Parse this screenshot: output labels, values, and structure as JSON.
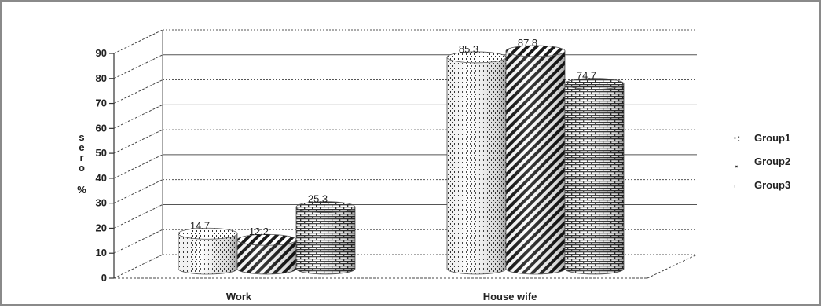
{
  "chart_data": {
    "type": "bar",
    "categories": [
      "Work",
      "House wife"
    ],
    "series": [
      {
        "name": "Group1",
        "values": [
          14.7,
          85.3
        ],
        "pattern": "dots"
      },
      {
        "name": "Group2",
        "values": [
          12.2,
          87.8
        ],
        "pattern": "diagonal"
      },
      {
        "name": "Group3",
        "values": [
          25.3,
          74.7
        ],
        "pattern": "brick"
      }
    ],
    "ylim": [
      0,
      90
    ],
    "yticks": [
      "0",
      "10",
      "20",
      "30",
      "40",
      "50",
      "60",
      "70",
      "80",
      "90"
    ],
    "ylabel": "%",
    "ylabel_stacked": "s e r o",
    "data_labels": [
      [
        "14.7",
        "85.3"
      ],
      [
        "12.2",
        "87.8"
      ],
      [
        "25.3",
        "74.7"
      ]
    ],
    "legend_markers": [
      "·:",
      "⸼",
      "⌐"
    ],
    "legend_position": "right",
    "grid": true,
    "colors": {
      "ink": "#222222",
      "grid": "#555555",
      "bar_fill": "#ffffff"
    }
  }
}
